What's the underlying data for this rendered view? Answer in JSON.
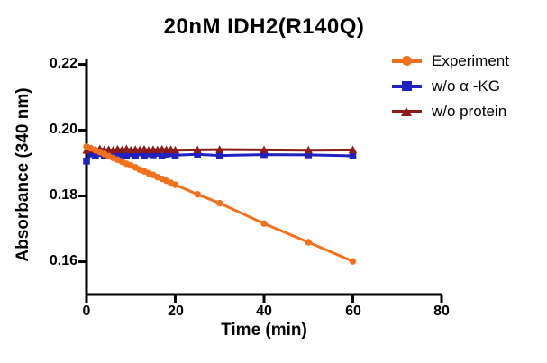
{
  "figure": {
    "background": "#FFFFFF"
  },
  "chart_data": {
    "type": "line",
    "title": "20nM IDH2(R140Q)",
    "xlabel": "Time (min)",
    "ylabel": "Absorbance (340 nm)",
    "xlim": [
      0,
      80
    ],
    "ylim": [
      0.15,
      0.2218
    ],
    "grid": false,
    "axis_color": "#000000",
    "legend_position": "outside-top-right",
    "xticks": {
      "values": [
        0,
        20,
        40,
        60,
        80
      ],
      "labels": [
        "0",
        "20",
        "40",
        "60",
        "80"
      ]
    },
    "yticks": {
      "values": [
        0.22,
        0.2,
        0.18,
        0.16
      ],
      "labels": [
        "0.22",
        "0.20",
        "0.18",
        "0.16"
      ]
    },
    "x": [
      0,
      1,
      2,
      3,
      4,
      5,
      6,
      7,
      8,
      9,
      10,
      11,
      12,
      13,
      14,
      15,
      16,
      17,
      18,
      19,
      20,
      25,
      30,
      40,
      50,
      60
    ],
    "series": [
      {
        "id": "experiment",
        "name": "Experiment",
        "color": "#F4711C",
        "marker": "circle",
        "values": [
          0.195,
          0.1945,
          0.1939,
          0.1934,
          0.1928,
          0.1921,
          0.1916,
          0.191,
          0.1904,
          0.1898,
          0.1893,
          0.1887,
          0.188,
          0.1875,
          0.1869,
          0.1864,
          0.1857,
          0.1852,
          0.1846,
          0.184,
          0.1834,
          0.1805,
          0.1778,
          0.1716,
          0.1659,
          0.1601
        ]
      },
      {
        "id": "wo-alpha-kg",
        "name": "w/o α -KG",
        "color": "#2121C1",
        "marker": "square",
        "values": [
          0.1906,
          0.1928,
          0.1922,
          0.193,
          0.1924,
          0.1928,
          0.1921,
          0.193,
          0.1925,
          0.1923,
          0.1929,
          0.1924,
          0.1931,
          0.1923,
          0.1928,
          0.1925,
          0.193,
          0.1922,
          0.1927,
          0.1929,
          0.1924,
          0.1927,
          0.1923,
          0.1926,
          0.1925,
          0.1922
        ]
      },
      {
        "id": "wo-protein",
        "name": "w/o protein",
        "color": "#8B1A1A",
        "marker": "triangle",
        "values": [
          0.1938,
          0.1942,
          0.1939,
          0.1943,
          0.194,
          0.1941,
          0.1939,
          0.1942,
          0.194,
          0.1943,
          0.1939,
          0.1941,
          0.194,
          0.1942,
          0.1939,
          0.1941,
          0.194,
          0.1942,
          0.194,
          0.1941,
          0.1939,
          0.194,
          0.1941,
          0.194,
          0.1939,
          0.194
        ]
      }
    ]
  }
}
